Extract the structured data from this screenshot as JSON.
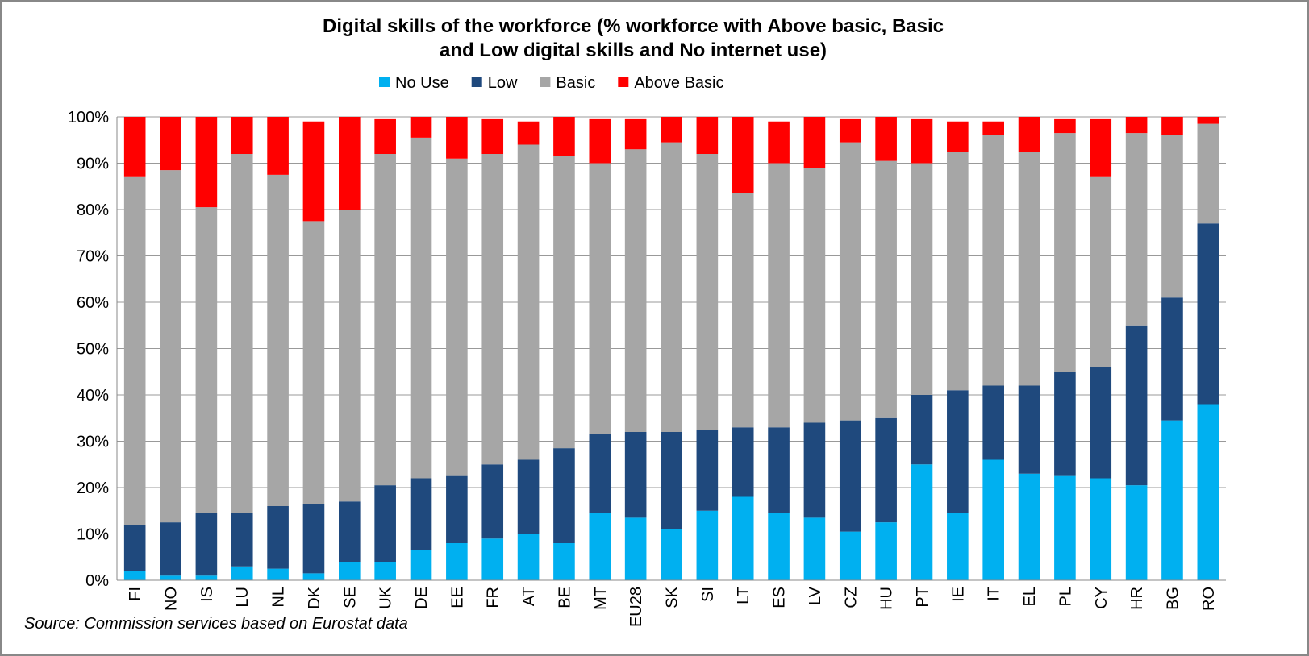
{
  "chart_data": {
    "type": "stacked_bar",
    "title": [
      "Digital skills of the workforce (% workforce with Above basic, Basic",
      "and Low digital skills and No internet use)"
    ],
    "source": "Source: Commission services based on Eurostat data",
    "categories": [
      "FI",
      "NO",
      "IS",
      "LU",
      "NL",
      "DK",
      "SE",
      "UK",
      "DE",
      "EE",
      "FR",
      "AT",
      "BE",
      "MT",
      "EU28",
      "SK",
      "SI",
      "LT",
      "ES",
      "LV",
      "CZ",
      "HU",
      "PT",
      "IE",
      "IT",
      "EL",
      "PL",
      "CY",
      "HR",
      "BG",
      "RO"
    ],
    "series": [
      {
        "name": "No Use",
        "color": "#00b0f0",
        "values": [
          2,
          1,
          1,
          3,
          2.5,
          1.5,
          4,
          4,
          6.5,
          8,
          9,
          10,
          8,
          14.5,
          13.5,
          11,
          15,
          18,
          14.5,
          13.5,
          10.5,
          12.5,
          25,
          14.5,
          26,
          23,
          22.5,
          22,
          20.5,
          34.5,
          38
        ]
      },
      {
        "name": "Low",
        "color": "#1f497d",
        "values": [
          10,
          11.5,
          13.5,
          11.5,
          13.5,
          15,
          13,
          16.5,
          15.5,
          14.5,
          16,
          16,
          20.5,
          17,
          18.5,
          21,
          17.5,
          15,
          18.5,
          20.5,
          24,
          22.5,
          15,
          26.5,
          16,
          19,
          22.5,
          24,
          34.5,
          26.5,
          39
        ]
      },
      {
        "name": "Basic",
        "color": "#a6a6a6",
        "values": [
          75,
          76,
          66,
          77.5,
          71.5,
          61,
          63,
          71.5,
          73.5,
          68.5,
          67,
          68,
          63,
          58.5,
          61,
          62.5,
          59.5,
          50.5,
          57,
          55,
          60,
          55.5,
          50,
          51.5,
          54,
          50.5,
          51.5,
          41,
          41.5,
          35,
          21.5
        ]
      },
      {
        "name": "Above Basic",
        "color": "#ff0000",
        "values": [
          13,
          11.5,
          19.5,
          8,
          12.5,
          21.5,
          20,
          7.5,
          4.5,
          9,
          7.5,
          5,
          8.5,
          9.5,
          6.5,
          5.5,
          8,
          16.5,
          9,
          11,
          5,
          9.5,
          9.5,
          6.5,
          3,
          7.5,
          3,
          12.5,
          3.5,
          4,
          1.5
        ]
      }
    ],
    "ylim": [
      0,
      100
    ],
    "yticks": [
      {
        "value": 0,
        "label": "0%"
      },
      {
        "value": 10,
        "label": "10%"
      },
      {
        "value": 20,
        "label": "20%"
      },
      {
        "value": 30,
        "label": "30%"
      },
      {
        "value": 40,
        "label": "40%"
      },
      {
        "value": 50,
        "label": "50%"
      },
      {
        "value": 60,
        "label": "60%"
      },
      {
        "value": 70,
        "label": "70%"
      },
      {
        "value": 80,
        "label": "80%"
      },
      {
        "value": 90,
        "label": "90%"
      },
      {
        "value": 100,
        "label": "100%"
      }
    ],
    "grid": true,
    "legend": "top"
  }
}
